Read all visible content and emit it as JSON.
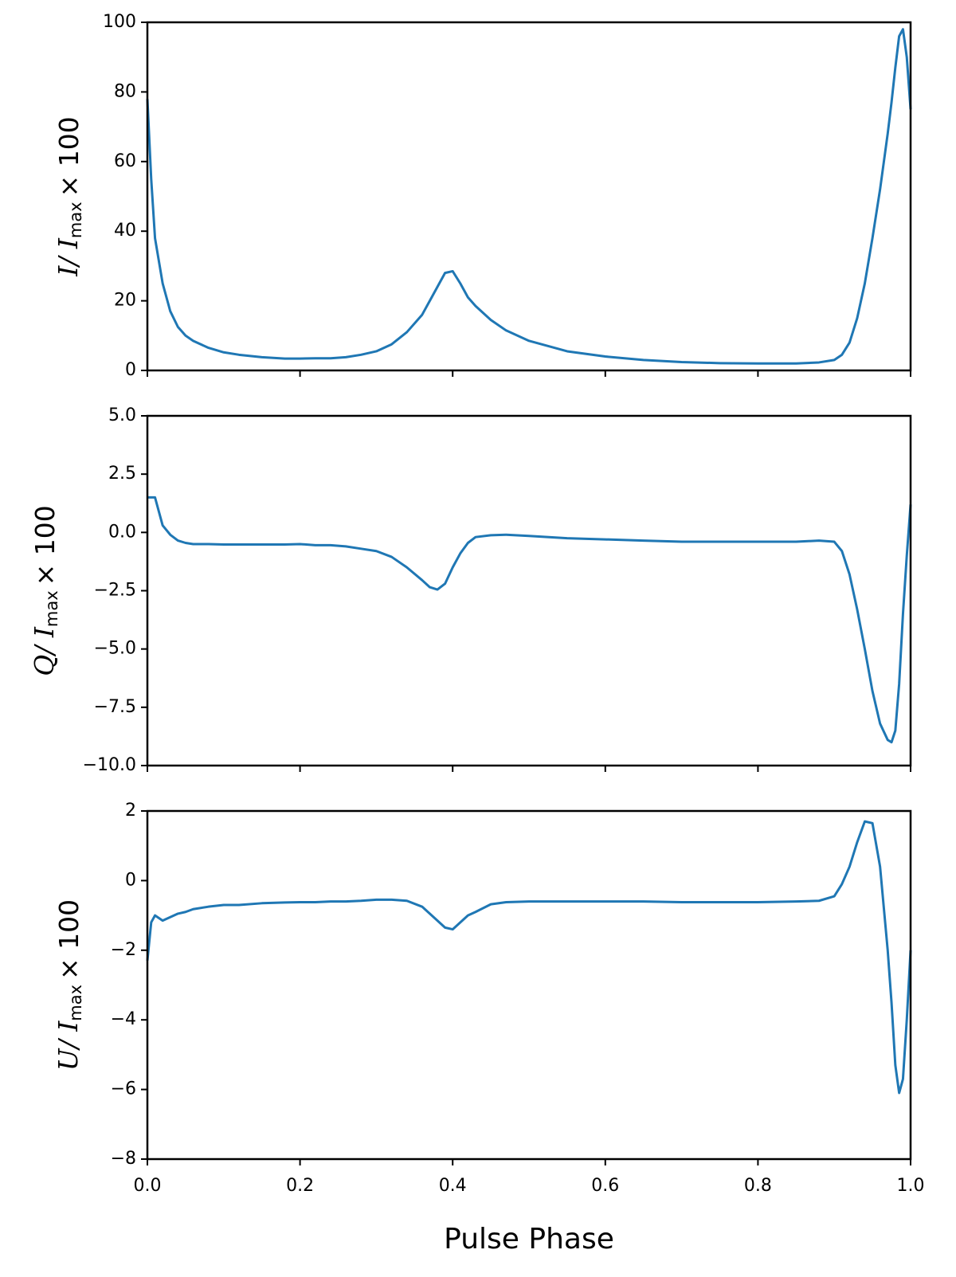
{
  "chart_data": [
    {
      "type": "line",
      "color": "#1f77b4",
      "ylabel": [
        "I/ I",
        "max",
        "× 100"
      ],
      "x": [
        0,
        0.005,
        0.01,
        0.02,
        0.03,
        0.04,
        0.05,
        0.06,
        0.08,
        0.1,
        0.12,
        0.15,
        0.18,
        0.2,
        0.22,
        0.24,
        0.26,
        0.28,
        0.3,
        0.32,
        0.34,
        0.36,
        0.37,
        0.38,
        0.39,
        0.4,
        0.41,
        0.42,
        0.43,
        0.45,
        0.47,
        0.5,
        0.55,
        0.6,
        0.65,
        0.7,
        0.75,
        0.8,
        0.85,
        0.88,
        0.9,
        0.91,
        0.92,
        0.93,
        0.94,
        0.95,
        0.96,
        0.97,
        0.975,
        0.98,
        0.985,
        0.99,
        0.995,
        1.0
      ],
      "values": [
        78,
        55,
        38,
        25,
        17,
        12.5,
        10,
        8.5,
        6.5,
        5.2,
        4.5,
        3.8,
        3.4,
        3.4,
        3.5,
        3.5,
        3.8,
        4.5,
        5.5,
        7.5,
        11,
        16,
        20,
        24,
        28,
        28.5,
        25,
        21,
        18.5,
        14.5,
        11.5,
        8.5,
        5.5,
        4,
        3,
        2.4,
        2.1,
        2,
        2,
        2.3,
        3,
        4.5,
        8,
        15,
        25,
        38,
        52,
        68,
        77,
        87,
        96,
        98,
        90,
        75
      ],
      "xlim": [
        0,
        1
      ],
      "xticks": [
        0,
        0.2,
        0.4,
        0.6,
        0.8,
        1
      ],
      "ylim": [
        0,
        100
      ],
      "yticks": [
        0,
        20,
        40,
        60,
        80,
        100
      ]
    },
    {
      "type": "line",
      "color": "#1f77b4",
      "ylabel": [
        "Q/ I",
        "max",
        "× 100"
      ],
      "x": [
        0,
        0.005,
        0.01,
        0.02,
        0.03,
        0.04,
        0.05,
        0.06,
        0.08,
        0.1,
        0.12,
        0.15,
        0.18,
        0.2,
        0.22,
        0.24,
        0.26,
        0.28,
        0.3,
        0.32,
        0.34,
        0.36,
        0.37,
        0.38,
        0.39,
        0.4,
        0.41,
        0.42,
        0.43,
        0.45,
        0.47,
        0.5,
        0.55,
        0.6,
        0.65,
        0.7,
        0.75,
        0.8,
        0.85,
        0.88,
        0.9,
        0.91,
        0.92,
        0.93,
        0.94,
        0.95,
        0.96,
        0.97,
        0.975,
        0.98,
        0.985,
        0.99,
        0.995,
        1.0
      ],
      "values": [
        1.5,
        1.5,
        1.5,
        0.3,
        -0.1,
        -0.35,
        -0.45,
        -0.5,
        -0.5,
        -0.52,
        -0.52,
        -0.52,
        -0.52,
        -0.5,
        -0.55,
        -0.55,
        -0.6,
        -0.7,
        -0.8,
        -1.05,
        -1.5,
        -2.05,
        -2.35,
        -2.45,
        -2.2,
        -1.5,
        -0.9,
        -0.45,
        -0.2,
        -0.12,
        -0.1,
        -0.15,
        -0.25,
        -0.3,
        -0.35,
        -0.4,
        -0.4,
        -0.4,
        -0.4,
        -0.35,
        -0.4,
        -0.8,
        -1.8,
        -3.3,
        -5,
        -6.8,
        -8.2,
        -8.9,
        -9,
        -8.5,
        -6.5,
        -3.5,
        -1,
        1.2
      ],
      "xlim": [
        0,
        1
      ],
      "xticks": [
        0,
        0.2,
        0.4,
        0.6,
        0.8,
        1
      ],
      "ylim": [
        -10,
        5
      ],
      "yticks": [
        {
          "value": -10,
          "label": "−10.0"
        },
        {
          "value": -7.5,
          "label": "−7.5"
        },
        {
          "value": -5,
          "label": "−5.0"
        },
        {
          "value": -2.5,
          "label": "−2.5"
        },
        {
          "value": 0,
          "label": "0.0"
        },
        {
          "value": 2.5,
          "label": "2.5"
        },
        {
          "value": 5,
          "label": "5.0"
        }
      ]
    },
    {
      "type": "line",
      "color": "#1f77b4",
      "ylabel": [
        "U/ I",
        "max",
        "× 100"
      ],
      "xlabel": "Pulse Phase",
      "x": [
        0,
        0.005,
        0.01,
        0.02,
        0.03,
        0.04,
        0.05,
        0.06,
        0.08,
        0.1,
        0.12,
        0.15,
        0.18,
        0.2,
        0.22,
        0.24,
        0.26,
        0.28,
        0.3,
        0.32,
        0.34,
        0.36,
        0.37,
        0.38,
        0.39,
        0.4,
        0.41,
        0.42,
        0.43,
        0.45,
        0.47,
        0.5,
        0.55,
        0.6,
        0.65,
        0.7,
        0.75,
        0.8,
        0.85,
        0.88,
        0.9,
        0.91,
        0.92,
        0.93,
        0.94,
        0.95,
        0.96,
        0.97,
        0.975,
        0.98,
        0.985,
        0.99,
        0.995,
        1.0
      ],
      "values": [
        -2.3,
        -1.2,
        -1.0,
        -1.15,
        -1.05,
        -0.95,
        -0.9,
        -0.82,
        -0.75,
        -0.7,
        -0.7,
        -0.65,
        -0.63,
        -0.62,
        -0.62,
        -0.6,
        -0.6,
        -0.58,
        -0.55,
        -0.55,
        -0.58,
        -0.75,
        -0.95,
        -1.15,
        -1.35,
        -1.4,
        -1.2,
        -1.0,
        -0.9,
        -0.68,
        -0.62,
        -0.6,
        -0.6,
        -0.6,
        -0.6,
        -0.62,
        -0.62,
        -0.62,
        -0.6,
        -0.58,
        -0.45,
        -0.1,
        0.4,
        1.1,
        1.7,
        1.65,
        0.4,
        -2,
        -3.5,
        -5.3,
        -6.1,
        -5.7,
        -4,
        -2
      ],
      "xlim": [
        0,
        1
      ],
      "xticks": [
        {
          "value": 0,
          "label": "0.0"
        },
        {
          "value": 0.2,
          "label": "0.2"
        },
        {
          "value": 0.4,
          "label": "0.4"
        },
        {
          "value": 0.6,
          "label": "0.6"
        },
        {
          "value": 0.8,
          "label": "0.8"
        },
        {
          "value": 1,
          "label": "1.0"
        }
      ],
      "ylim": [
        -8,
        2
      ],
      "yticks": [
        {
          "value": -8,
          "label": "−8"
        },
        {
          "value": -6,
          "label": "−6"
        },
        {
          "value": -4,
          "label": "−4"
        },
        {
          "value": -2,
          "label": "−2"
        },
        0,
        2
      ]
    }
  ]
}
